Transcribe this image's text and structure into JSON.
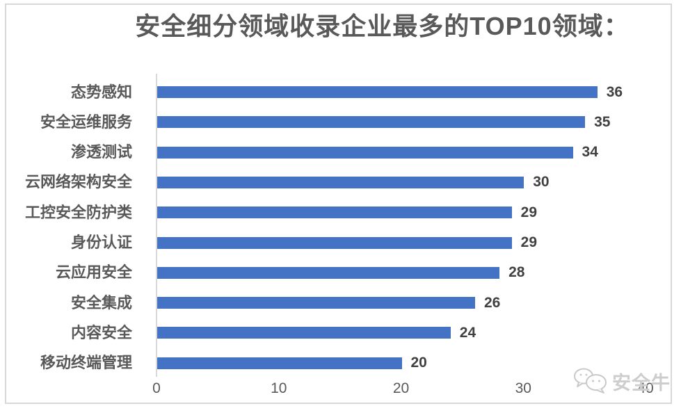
{
  "title": "安全细分领域收录企业最多的TOP10领域：",
  "watermark": {
    "label": "安全牛",
    "icon": "chat-bubbles-icon"
  },
  "colors": {
    "bar": "#4472C4",
    "title_text": "#595959",
    "category_text": "#595959",
    "value_text": "#404040",
    "axis_line": "#D9D9D9",
    "tick_text": "#595959",
    "frame_border": "#D8D8D8",
    "watermark_text": "#CDCDCD",
    "background": "#FFFFFF"
  },
  "chart_data": {
    "type": "bar",
    "orientation": "horizontal",
    "title": "安全细分领域收录企业最多的TOP10领域：",
    "categories": [
      "态势感知",
      "安全运维服务",
      "渗透测试",
      "云网络架构安全",
      "工控安全防护类",
      "身份认证",
      "云应用安全",
      "安全集成",
      "内容安全",
      "移动终端管理"
    ],
    "values": [
      36,
      35,
      34,
      30,
      29,
      29,
      28,
      26,
      24,
      20
    ],
    "data_labels": [
      36,
      35,
      34,
      30,
      29,
      29,
      28,
      26,
      24,
      20
    ],
    "xlabel": "",
    "ylabel": "",
    "xlim": [
      0,
      40
    ],
    "x_ticks": [
      0,
      10,
      20,
      30,
      40
    ],
    "x_tick_labels": [
      "0",
      "10",
      "20",
      "30",
      "40"
    ],
    "grid": false,
    "legend": false,
    "bars_sorted_descending": true
  }
}
